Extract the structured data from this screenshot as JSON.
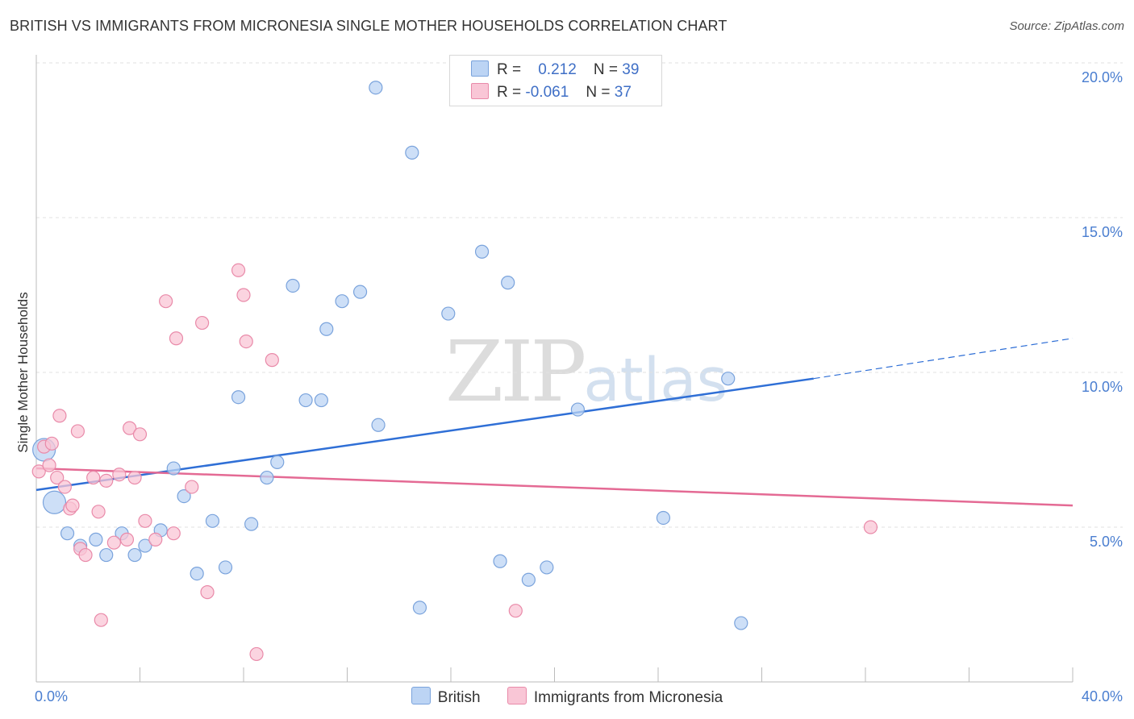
{
  "title": "BRITISH VS IMMIGRANTS FROM MICRONESIA SINGLE MOTHER HOUSEHOLDS CORRELATION CHART",
  "source": "Source: ZipAtlas.com",
  "watermark": {
    "zip": "ZIP",
    "atlas": "atlas"
  },
  "legend": {
    "rows": [
      {
        "r_label": "R =",
        "r_value": "0.212",
        "n_label": "N =",
        "n_value": "39"
      },
      {
        "r_label": "R =",
        "r_value": "-0.061",
        "n_label": "N =",
        "n_value": "37"
      }
    ]
  },
  "colors": {
    "british_fill": "#bcd4f4",
    "british_stroke": "#7aa3dc",
    "british_line": "#2f6fd6",
    "micro_fill": "#f9c6d6",
    "micro_stroke": "#e98aa9",
    "micro_line": "#e46a94",
    "grid": "#e2e2e2",
    "axis_tick": "#4a7ed0"
  },
  "chart_data": {
    "type": "scatter",
    "ylabel": "Single Mother Households",
    "xlim": [
      0,
      40
    ],
    "ylim": [
      0,
      20
    ],
    "x_tick_labels": [
      "0.0%",
      "40.0%"
    ],
    "y_ticks": [
      5,
      10,
      15,
      20
    ],
    "y_tick_labels": [
      "5.0%",
      "10.0%",
      "15.0%",
      "20.0%"
    ],
    "legend_placement": "top-center",
    "grid": true,
    "series": [
      {
        "name": "British",
        "trend": {
          "x0": 0,
          "y0": 6.2,
          "x1": 30,
          "y1": 9.8,
          "dash_to_x": 40,
          "dash_to_y": 11.1
        },
        "points": [
          {
            "x": 0.3,
            "y": 7.5,
            "big": true
          },
          {
            "x": 0.7,
            "y": 5.8,
            "big": true
          },
          {
            "x": 1.2,
            "y": 4.8
          },
          {
            "x": 1.7,
            "y": 4.4
          },
          {
            "x": 2.3,
            "y": 4.6
          },
          {
            "x": 2.7,
            "y": 4.1
          },
          {
            "x": 3.3,
            "y": 4.8
          },
          {
            "x": 3.8,
            "y": 4.1
          },
          {
            "x": 4.2,
            "y": 4.4
          },
          {
            "x": 4.8,
            "y": 4.9
          },
          {
            "x": 5.3,
            "y": 6.9
          },
          {
            "x": 5.7,
            "y": 6.0
          },
          {
            "x": 6.2,
            "y": 3.5
          },
          {
            "x": 6.8,
            "y": 5.2
          },
          {
            "x": 7.3,
            "y": 3.7
          },
          {
            "x": 7.8,
            "y": 9.2
          },
          {
            "x": 8.3,
            "y": 5.1
          },
          {
            "x": 8.9,
            "y": 6.6
          },
          {
            "x": 9.3,
            "y": 7.1
          },
          {
            "x": 9.9,
            "y": 12.8
          },
          {
            "x": 10.4,
            "y": 9.1
          },
          {
            "x": 11.0,
            "y": 9.1
          },
          {
            "x": 11.2,
            "y": 11.4
          },
          {
            "x": 11.8,
            "y": 12.3
          },
          {
            "x": 12.5,
            "y": 12.6
          },
          {
            "x": 13.1,
            "y": 19.2
          },
          {
            "x": 13.2,
            "y": 8.3
          },
          {
            "x": 14.5,
            "y": 17.1
          },
          {
            "x": 14.8,
            "y": 2.4
          },
          {
            "x": 15.9,
            "y": 11.9
          },
          {
            "x": 17.2,
            "y": 13.9
          },
          {
            "x": 17.9,
            "y": 3.9
          },
          {
            "x": 18.2,
            "y": 12.9
          },
          {
            "x": 19.0,
            "y": 3.3
          },
          {
            "x": 19.7,
            "y": 3.7
          },
          {
            "x": 20.9,
            "y": 8.8
          },
          {
            "x": 24.2,
            "y": 5.3
          },
          {
            "x": 26.7,
            "y": 9.8
          },
          {
            "x": 27.2,
            "y": 1.9
          }
        ]
      },
      {
        "name": "Immigrants from Micronesia",
        "trend": {
          "x0": 0,
          "y0": 6.9,
          "x1": 40,
          "y1": 5.7
        },
        "points": [
          {
            "x": 0.1,
            "y": 6.8
          },
          {
            "x": 0.3,
            "y": 7.6
          },
          {
            "x": 0.5,
            "y": 7.0
          },
          {
            "x": 0.6,
            "y": 7.7
          },
          {
            "x": 0.8,
            "y": 6.6
          },
          {
            "x": 0.9,
            "y": 8.6
          },
          {
            "x": 1.1,
            "y": 6.3
          },
          {
            "x": 1.3,
            "y": 5.6
          },
          {
            "x": 1.4,
            "y": 5.7
          },
          {
            "x": 1.6,
            "y": 8.1
          },
          {
            "x": 1.7,
            "y": 4.3
          },
          {
            "x": 1.9,
            "y": 4.1
          },
          {
            "x": 2.2,
            "y": 6.6
          },
          {
            "x": 2.4,
            "y": 5.5
          },
          {
            "x": 2.5,
            "y": 2.0
          },
          {
            "x": 2.7,
            "y": 6.5
          },
          {
            "x": 3.0,
            "y": 4.5
          },
          {
            "x": 3.2,
            "y": 6.7
          },
          {
            "x": 3.5,
            "y": 4.6
          },
          {
            "x": 3.6,
            "y": 8.2
          },
          {
            "x": 3.8,
            "y": 6.6
          },
          {
            "x": 4.0,
            "y": 8.0
          },
          {
            "x": 4.2,
            "y": 5.2
          },
          {
            "x": 4.6,
            "y": 4.6
          },
          {
            "x": 5.0,
            "y": 12.3
          },
          {
            "x": 5.3,
            "y": 4.8
          },
          {
            "x": 5.4,
            "y": 11.1
          },
          {
            "x": 6.4,
            "y": 11.6
          },
          {
            "x": 6.6,
            "y": 2.9
          },
          {
            "x": 6.0,
            "y": 6.3
          },
          {
            "x": 7.8,
            "y": 13.3
          },
          {
            "x": 8.0,
            "y": 12.5
          },
          {
            "x": 8.1,
            "y": 11.0
          },
          {
            "x": 8.5,
            "y": 0.9
          },
          {
            "x": 9.1,
            "y": 10.4
          },
          {
            "x": 18.5,
            "y": 2.3
          },
          {
            "x": 32.2,
            "y": 5.0
          }
        ]
      }
    ]
  }
}
